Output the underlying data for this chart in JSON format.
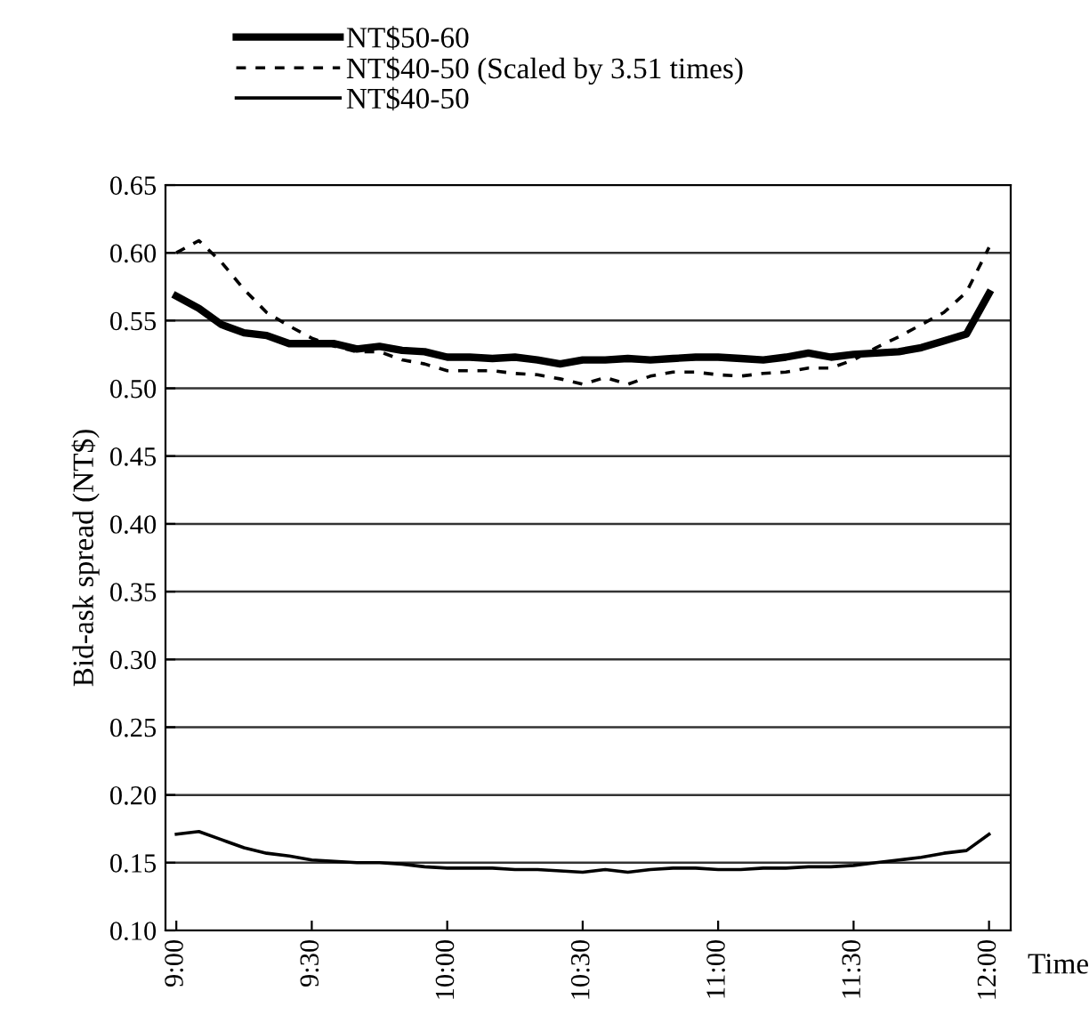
{
  "chart_data": {
    "type": "line",
    "xlabel": "Time",
    "ylabel": "Bid-ask spread (NT$)",
    "x": [
      9.0,
      9.0833,
      9.1667,
      9.25,
      9.3333,
      9.4167,
      9.5,
      9.5833,
      9.6667,
      9.75,
      9.8333,
      9.9167,
      10.0,
      10.0833,
      10.1667,
      10.25,
      10.3333,
      10.4167,
      10.5,
      10.5833,
      10.6667,
      10.75,
      10.8333,
      10.9167,
      11.0,
      11.0833,
      11.1667,
      11.25,
      11.3333,
      11.4167,
      11.5,
      11.5833,
      11.6667,
      11.75,
      11.8333,
      11.9167,
      12.0
    ],
    "series": [
      {
        "name": "NT$50-60",
        "color": "#000000",
        "line_style": "solid",
        "values": [
          0.568,
          0.559,
          0.547,
          0.541,
          0.539,
          0.533,
          0.533,
          0.533,
          0.529,
          0.531,
          0.528,
          0.527,
          0.523,
          0.523,
          0.522,
          0.523,
          0.521,
          0.518,
          0.521,
          0.521,
          0.522,
          0.521,
          0.522,
          0.523,
          0.523,
          0.522,
          0.521,
          0.523,
          0.526,
          0.523,
          0.525,
          0.526,
          0.527,
          0.53,
          0.535,
          0.54,
          0.57
        ]
      },
      {
        "name": "NT$40-50 (Scaled by 3.51 times)",
        "color": "#000000",
        "line_style": "dashed",
        "values": [
          0.6,
          0.609,
          0.593,
          0.573,
          0.556,
          0.546,
          0.537,
          0.531,
          0.527,
          0.527,
          0.521,
          0.518,
          0.513,
          0.513,
          0.513,
          0.511,
          0.51,
          0.507,
          0.503,
          0.508,
          0.503,
          0.509,
          0.512,
          0.512,
          0.51,
          0.509,
          0.511,
          0.512,
          0.515,
          0.515,
          0.521,
          0.53,
          0.538,
          0.547,
          0.556,
          0.571,
          0.604
        ]
      },
      {
        "name": "NT$40-50",
        "color": "#000000",
        "line_style": "solid",
        "values": [
          0.171,
          0.173,
          0.167,
          0.161,
          0.157,
          0.155,
          0.152,
          0.151,
          0.15,
          0.15,
          0.149,
          0.147,
          0.146,
          0.146,
          0.146,
          0.145,
          0.145,
          0.144,
          0.143,
          0.145,
          0.143,
          0.145,
          0.146,
          0.146,
          0.145,
          0.145,
          0.146,
          0.146,
          0.147,
          0.147,
          0.148,
          0.15,
          0.152,
          0.154,
          0.157,
          0.159,
          0.171
        ]
      }
    ],
    "xlim": [
      8.96,
      12.08
    ],
    "xticks": [
      {
        "value": 9.0,
        "label": "9:00"
      },
      {
        "value": 9.5,
        "label": "9:30"
      },
      {
        "value": 10.0,
        "label": "10:00"
      },
      {
        "value": 10.5,
        "label": "10:30"
      },
      {
        "value": 11.0,
        "label": "11:00"
      },
      {
        "value": 11.5,
        "label": "11:30"
      },
      {
        "value": 12.0,
        "label": "12:00"
      }
    ],
    "ylim": [
      0.1,
      0.65
    ],
    "yticks": [
      {
        "value": 0.1,
        "label": "0.10"
      },
      {
        "value": 0.15,
        "label": "0.15"
      },
      {
        "value": 0.2,
        "label": "0.20"
      },
      {
        "value": 0.25,
        "label": "0.25"
      },
      {
        "value": 0.3,
        "label": "0.30"
      },
      {
        "value": 0.35,
        "label": "0.35"
      },
      {
        "value": 0.4,
        "label": "0.40"
      },
      {
        "value": 0.45,
        "label": "0.45"
      },
      {
        "value": 0.5,
        "label": "0.50"
      },
      {
        "value": 0.55,
        "label": "0.55"
      },
      {
        "value": 0.6,
        "label": "0.60"
      },
      {
        "value": 0.65,
        "label": "0.65"
      }
    ],
    "grid": "y",
    "legend": "top",
    "marker": "none"
  }
}
